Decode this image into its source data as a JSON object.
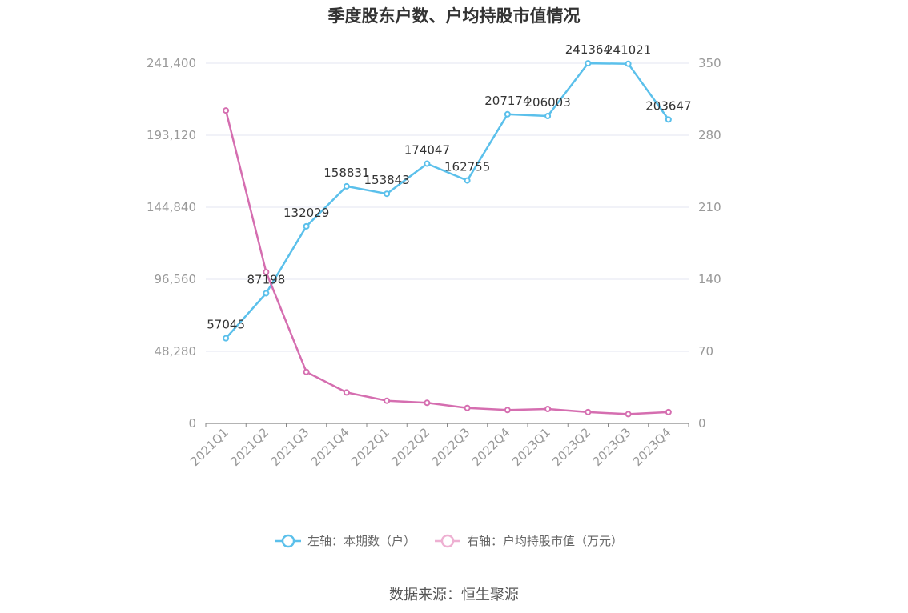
{
  "title": "季度股东户数、户均持股市值情况",
  "source": "数据来源：恒生聚源",
  "chart_data": {
    "type": "line",
    "title": "季度股东户数、户均持股市值情况",
    "categories": [
      "2021Q1",
      "2021Q2",
      "2021Q3",
      "2021Q4",
      "2022Q1",
      "2022Q2",
      "2022Q3",
      "2022Q4",
      "2023Q1",
      "2023Q2",
      "2023Q3",
      "2023Q4"
    ],
    "y_left": {
      "ticks": [
        "0",
        "48,280",
        "96,560",
        "144,840",
        "193,120",
        "241,400"
      ],
      "range": [
        0,
        241400
      ]
    },
    "y_right": {
      "ticks": [
        "0",
        "70",
        "140",
        "210",
        "280",
        "350"
      ],
      "range": [
        0,
        350
      ]
    },
    "grid": true,
    "legend_position": "bottom",
    "series": [
      {
        "name": "左轴：本期数（户）",
        "axis": "left",
        "color": "#5bc0eb",
        "values": [
          57045,
          87198,
          132029,
          158831,
          153843,
          174047,
          162755,
          207174,
          206003,
          241364,
          241021,
          203647
        ],
        "labels": [
          "57045",
          "87198",
          "132029",
          "158831",
          "153843",
          "174047",
          "162755",
          "207174",
          "206003",
          "241364",
          "241021",
          "203647"
        ]
      },
      {
        "name": "右轴：户均持股市值（万元）",
        "axis": "right",
        "color": "#d56eb0",
        "legend_color": "#eeb0d2",
        "values": [
          304,
          147,
          50,
          30,
          22,
          20,
          15,
          13,
          14,
          11,
          9,
          11
        ]
      }
    ]
  }
}
